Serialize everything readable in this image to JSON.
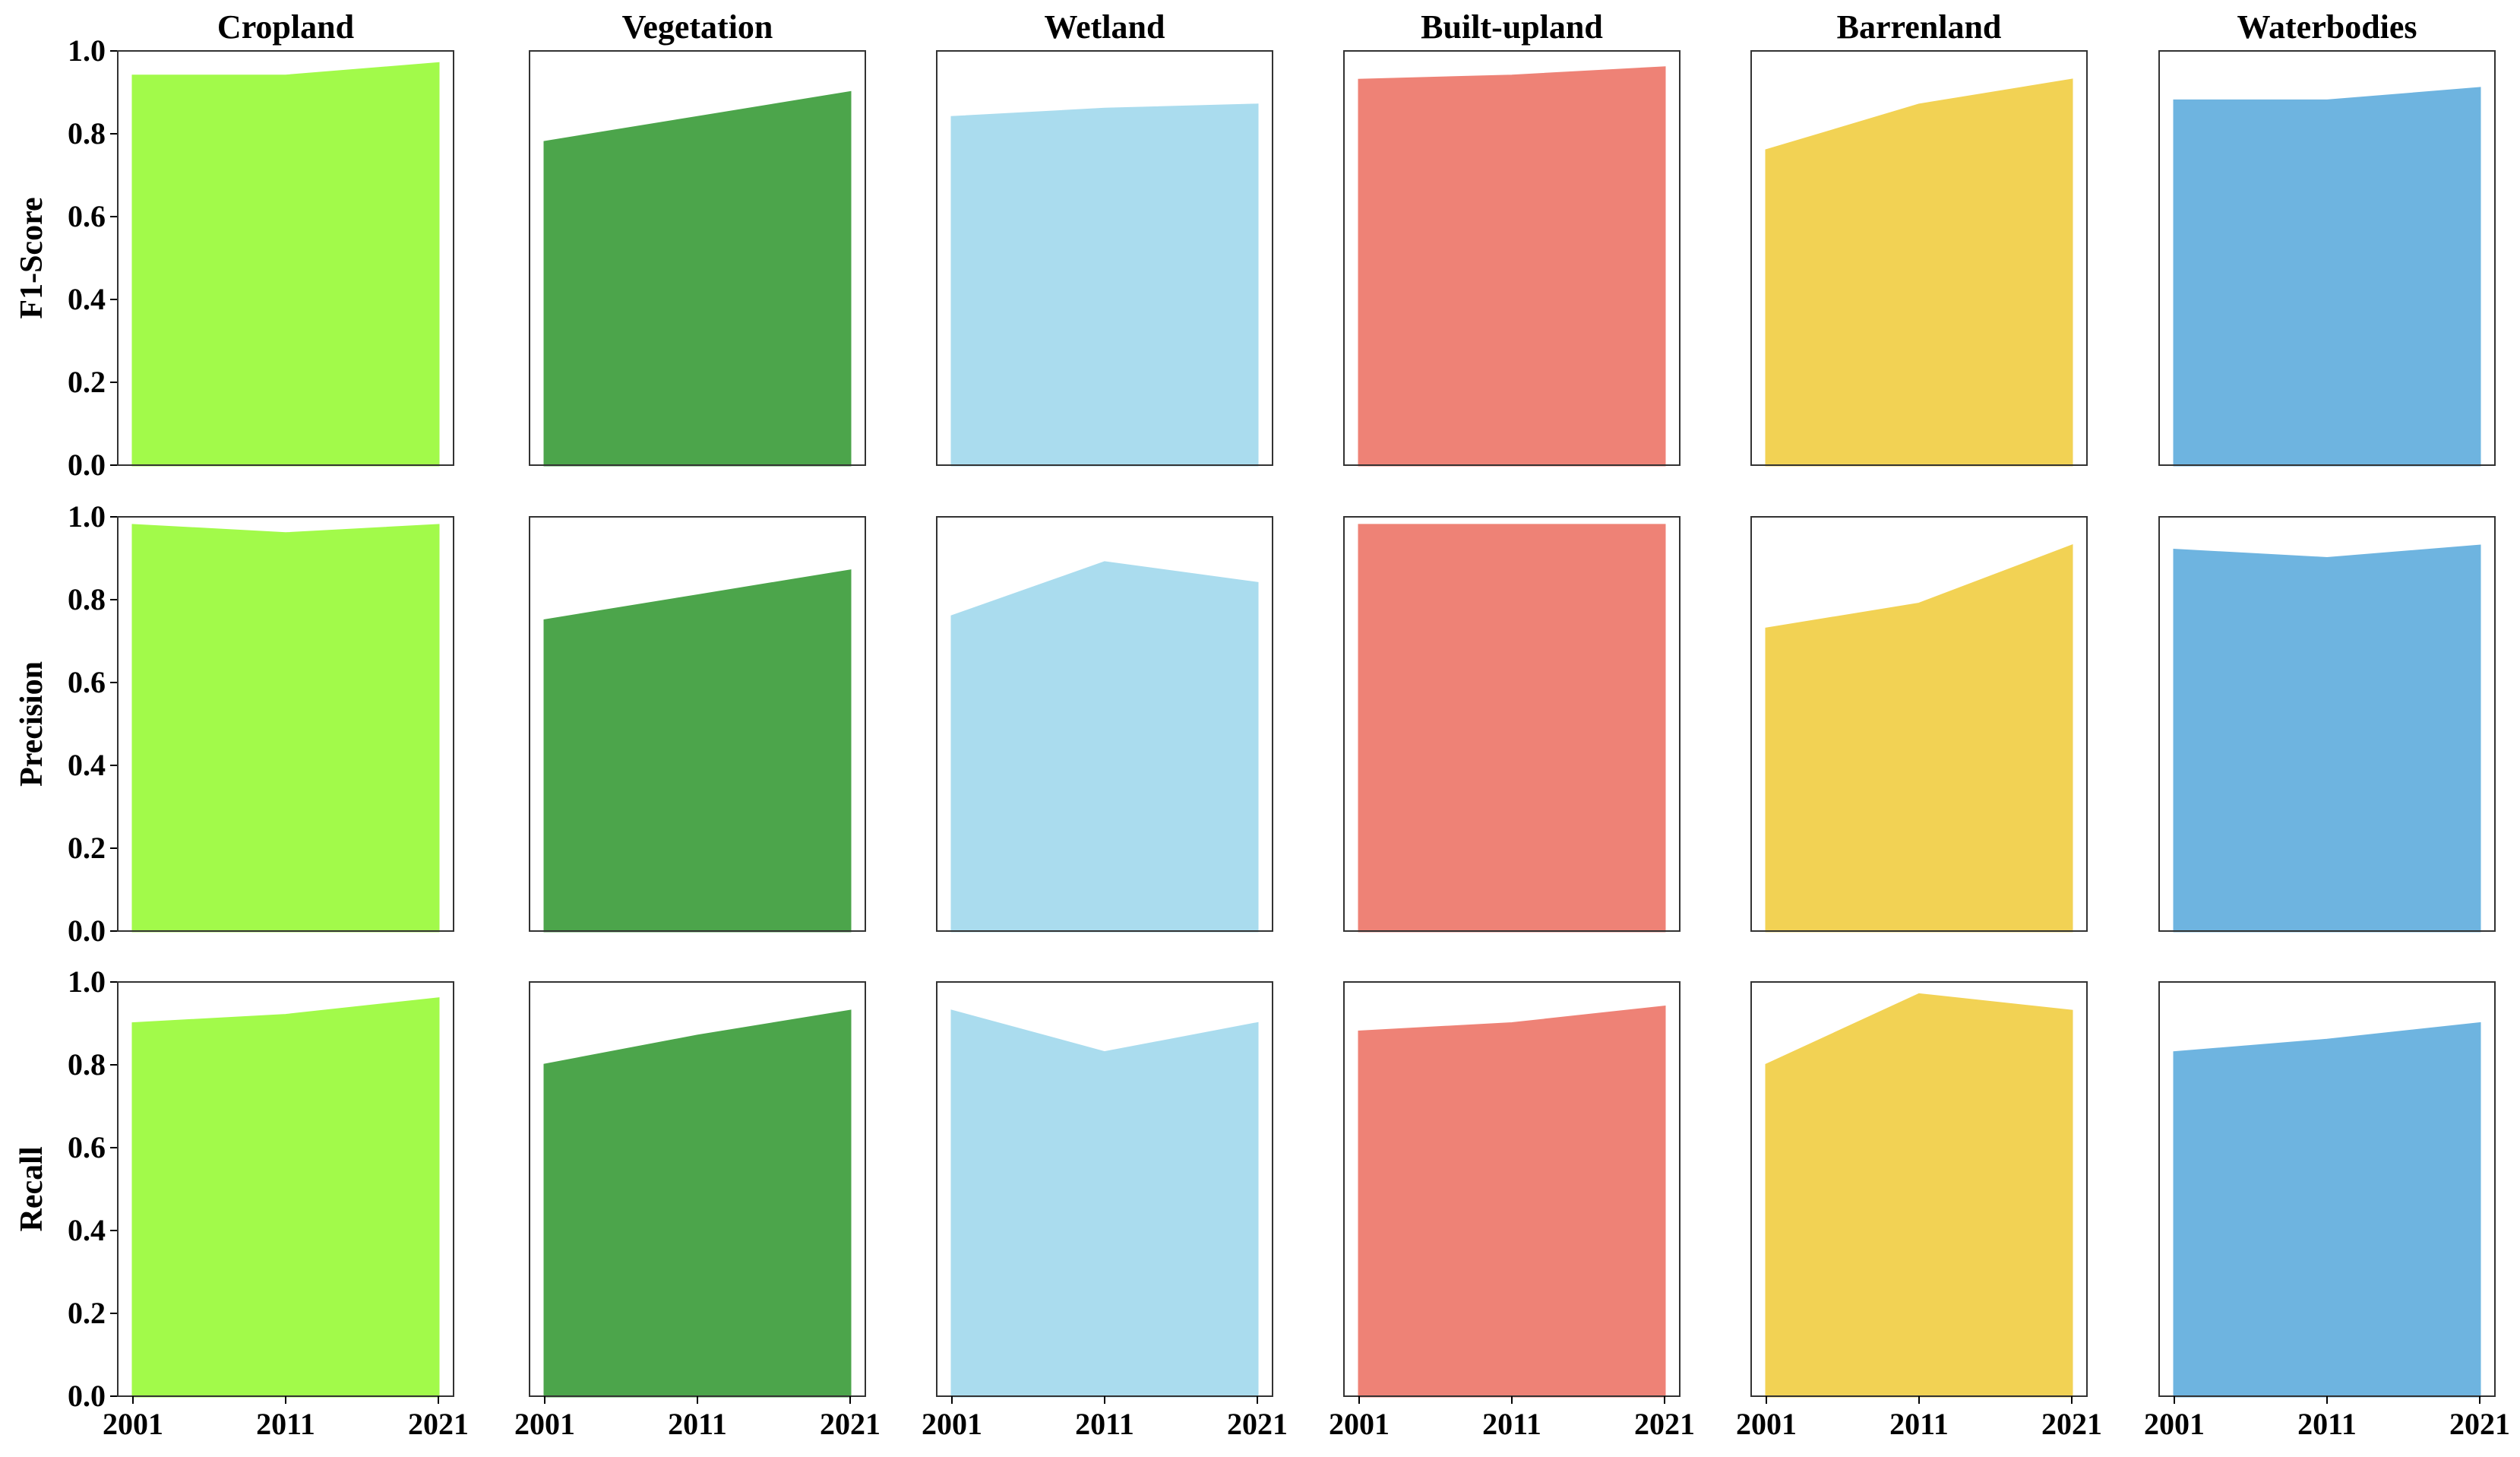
{
  "chart_data": {
    "type": "area",
    "layout": "grid 3 rows x 6 columns, shared y-axis per row",
    "x": [
      2001,
      2011,
      2021
    ],
    "x_tick_labels": [
      "2001",
      "2011",
      "2021"
    ],
    "yticks": [
      "0.0",
      "0.2",
      "0.4",
      "0.6",
      "0.8",
      "1.0"
    ],
    "ylim": [
      0,
      1
    ],
    "grid": false,
    "legend": "none",
    "columns": [
      {
        "name": "Cropland",
        "color": "#a2fa4a"
      },
      {
        "name": "Vegetation",
        "color": "#4ca54b"
      },
      {
        "name": "Wetland",
        "color": "#aadcee"
      },
      {
        "name": "Built-upland",
        "color": "#ee8276"
      },
      {
        "name": "Barrenland",
        "color": "#f2d254"
      },
      {
        "name": "Waterbodies",
        "color": "#6eb4e0"
      }
    ],
    "rows": [
      {
        "metric": "F1-Score",
        "values": [
          [
            0.94,
            0.94,
            0.97
          ],
          [
            0.78,
            0.84,
            0.9
          ],
          [
            0.84,
            0.86,
            0.87
          ],
          [
            0.93,
            0.94,
            0.96
          ],
          [
            0.76,
            0.87,
            0.93
          ],
          [
            0.88,
            0.88,
            0.91
          ]
        ]
      },
      {
        "metric": "Precision",
        "values": [
          [
            0.98,
            0.96,
            0.98
          ],
          [
            0.75,
            0.81,
            0.87
          ],
          [
            0.76,
            0.89,
            0.84
          ],
          [
            0.98,
            0.98,
            0.98
          ],
          [
            0.73,
            0.79,
            0.93
          ],
          [
            0.92,
            0.9,
            0.93
          ]
        ]
      },
      {
        "metric": "Recall",
        "values": [
          [
            0.9,
            0.92,
            0.96
          ],
          [
            0.8,
            0.87,
            0.93
          ],
          [
            0.93,
            0.83,
            0.9
          ],
          [
            0.88,
            0.9,
            0.94
          ],
          [
            0.8,
            0.97,
            0.93
          ],
          [
            0.83,
            0.86,
            0.9
          ]
        ]
      }
    ]
  }
}
